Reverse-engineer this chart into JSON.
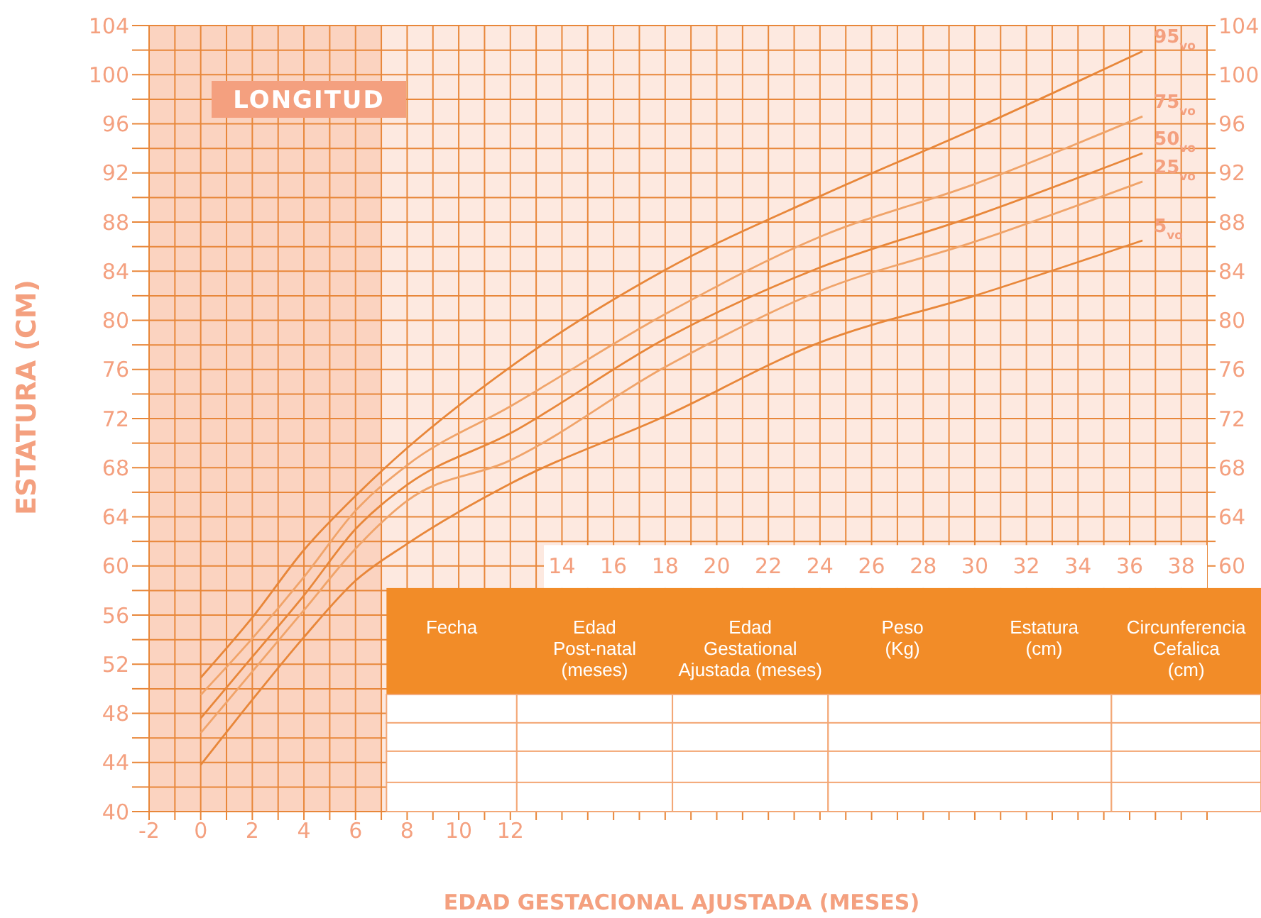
{
  "chart_data": {
    "type": "line",
    "title": "LONGITUD",
    "xlabel": "EDAD GESTACIONAL AJUSTADA (MESES)",
    "ylabel": "ESTATURA (CM)",
    "x": [
      0,
      2,
      4,
      6,
      8,
      12,
      18,
      24,
      30,
      36.5
    ],
    "series": [
      {
        "name": "95$_{vo}$",
        "color": "#e8873a",
        "values": [
          50.9,
          55.8,
          61.3,
          65.7,
          69.6,
          76.2,
          84.1,
          90.1,
          95.6,
          101.9
        ]
      },
      {
        "name": "75$_{vo}$",
        "color": "#f0a46a",
        "values": [
          49.5,
          54.1,
          59.1,
          64.5,
          68.2,
          73.0,
          80.5,
          86.8,
          91.1,
          96.6
        ]
      },
      {
        "name": "50$_{vo}$",
        "color": "#e8873a",
        "values": [
          47.6,
          52.6,
          57.6,
          63.0,
          66.6,
          70.8,
          78.5,
          84.3,
          88.5,
          93.6
        ]
      },
      {
        "name": "25$_{vo}$",
        "color": "#f0a46a",
        "values": [
          46.4,
          51.4,
          56.4,
          61.4,
          65.3,
          68.6,
          76.2,
          82.4,
          86.4,
          91.3
        ]
      },
      {
        "name": "5$_{vo}$",
        "color": "#e8873a",
        "values": [
          43.8,
          49.1,
          54.2,
          58.8,
          61.8,
          66.7,
          72.2,
          78.2,
          82.0,
          86.5
        ]
      }
    ],
    "xlim": [
      -2,
      39
    ],
    "xticks": [
      -2,
      {
        "value": -1,
        "label": null
      },
      0,
      {
        "value": 1,
        "label": null
      },
      2,
      {
        "value": 3,
        "label": null
      },
      4,
      {
        "value": 5,
        "label": null
      },
      6,
      {
        "value": 7,
        "label": null
      },
      8,
      {
        "value": 9,
        "label": null
      },
      10,
      {
        "value": 11,
        "label": null
      },
      12,
      {
        "value": 13,
        "label": null
      },
      {
        "value": 14,
        "label": null
      },
      {
        "value": 15,
        "label": null
      },
      {
        "value": 16,
        "label": null
      },
      {
        "value": 17,
        "label": null
      },
      {
        "value": 18,
        "label": null
      },
      {
        "value": 19,
        "label": null
      },
      {
        "value": 20,
        "label": null
      },
      {
        "value": 21,
        "label": null
      },
      {
        "value": 22,
        "label": null
      },
      {
        "value": 23,
        "label": null
      },
      {
        "value": 24,
        "label": null
      },
      {
        "value": 25,
        "label": null
      },
      {
        "value": 26,
        "label": null
      },
      {
        "value": 27,
        "label": null
      },
      {
        "value": 28,
        "label": null
      },
      {
        "value": 29,
        "label": null
      },
      {
        "value": 30,
        "label": null
      },
      {
        "value": 31,
        "label": null
      },
      {
        "value": 32,
        "label": null
      },
      {
        "value": 33,
        "label": null
      },
      {
        "value": 34,
        "label": null
      },
      {
        "value": 35,
        "label": null
      },
      {
        "value": 36,
        "label": null
      },
      {
        "value": 37,
        "label": null
      },
      {
        "value": 38,
        "label": null
      },
      {
        "value": 39,
        "label": null
      }
    ],
    "x2lim": [
      -2,
      39
    ],
    "x2ticks": [
      14,
      16,
      18,
      20,
      22,
      24,
      26,
      28,
      30,
      32,
      34,
      36,
      38
    ],
    "ylim": [
      40,
      104
    ],
    "yticks": [
      40,
      {
        "value": 42,
        "label": null
      },
      44,
      {
        "value": 46,
        "label": null
      },
      48,
      {
        "value": 50,
        "label": null
      },
      52,
      {
        "value": 54,
        "label": null
      },
      56,
      {
        "value": 58,
        "label": null
      },
      60,
      {
        "value": 62,
        "label": null
      },
      64,
      {
        "value": 66,
        "label": null
      },
      68,
      {
        "value": 70,
        "label": null
      },
      72,
      {
        "value": 74,
        "label": null
      },
      76,
      {
        "value": 78,
        "label": null
      },
      80,
      {
        "value": 82,
        "label": null
      },
      84,
      {
        "value": 86,
        "label": null
      },
      88,
      {
        "value": 90,
        "label": null
      },
      92,
      {
        "value": 94,
        "label": null
      },
      96,
      {
        "value": 98,
        "label": null
      },
      100,
      {
        "value": 102,
        "label": null
      },
      104
    ],
    "y2lim": [
      40,
      104
    ],
    "y2ticks": [
      60,
      {
        "value": 62,
        "label": null
      },
      64,
      {
        "value": 66,
        "label": null
      },
      68,
      {
        "value": 70,
        "label": null
      },
      72,
      {
        "value": 74,
        "label": null
      },
      76,
      {
        "value": 78,
        "label": null
      },
      80,
      {
        "value": 82,
        "label": null
      },
      84,
      {
        "value": 86,
        "label": null
      },
      88,
      {
        "value": 90,
        "label": null
      },
      92,
      {
        "value": 94,
        "label": null
      },
      96,
      {
        "value": 98,
        "label": null
      },
      100,
      {
        "value": 102,
        "label": null
      },
      104
    ],
    "bands": [
      {
        "axis": "x",
        "from": -2,
        "to": 7,
        "color": "#fbd3c0"
      },
      {
        "axis": "x",
        "from": 7,
        "to": 39,
        "color": "#fde9e0"
      }
    ],
    "grid": true,
    "marker": "none",
    "line_style": "solid",
    "annotations": [
      "Fecha",
      "Edad\nPost-natal\n(meses)",
      "Edad\nGestational\nAjustada (meses)",
      "Peso\n(Kg)",
      "Estatura\n(cm)",
      "Circunferencia\nCefalica\n(cm)"
    ]
  }
}
